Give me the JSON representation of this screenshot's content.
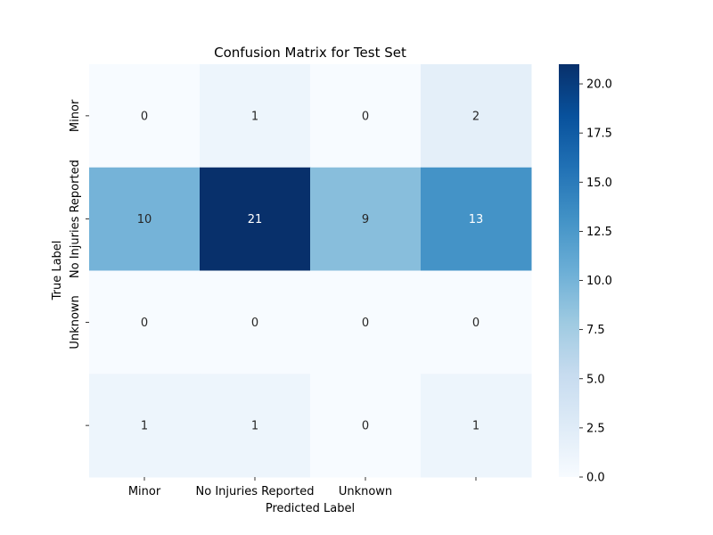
{
  "chart_data": {
    "type": "heatmap",
    "title": "Confusion Matrix for Test Set",
    "xlabel": "Predicted Label",
    "ylabel": "True Label",
    "x_categories": [
      "Minor",
      "No Injuries Reported",
      "Unknown",
      ""
    ],
    "y_categories": [
      "Minor",
      "No Injuries Reported",
      "Unknown",
      ""
    ],
    "values": [
      [
        0,
        1,
        0,
        2
      ],
      [
        10,
        21,
        9,
        13
      ],
      [
        0,
        0,
        0,
        0
      ],
      [
        1,
        1,
        0,
        1
      ]
    ],
    "colorbar": {
      "min": 0,
      "max": 21,
      "ticks": [
        0,
        2.5,
        5,
        7.5,
        10,
        12.5,
        15,
        17.5,
        20
      ],
      "tick_labels": [
        "0.0",
        "2.5",
        "5.0",
        "7.5",
        "10.0",
        "12.5",
        "15.0",
        "17.5",
        "20.0"
      ],
      "colormap": "Blues"
    }
  }
}
